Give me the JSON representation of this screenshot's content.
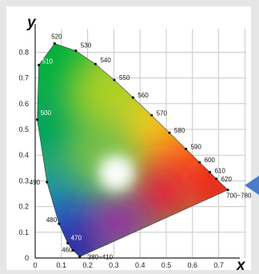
{
  "chart_data": {
    "type": "scatter",
    "title": "",
    "xlabel": "x",
    "ylabel": "y",
    "xlim": [
      0,
      0.8
    ],
    "ylim": [
      0,
      0.9
    ],
    "grid": true,
    "x_ticks": [
      "0",
      "0.1",
      "0.2",
      "0.3",
      "0.4",
      "0.5",
      "0.6",
      "0.7"
    ],
    "y_ticks": [
      "0",
      "0.1",
      "0.2",
      "0.3",
      "0.4",
      "0.5",
      "0.6",
      "0.7",
      "0.8"
    ],
    "spectral_locus": [
      {
        "label": "380~410",
        "x": 0.17,
        "y": 0.005
      },
      {
        "label": "460",
        "x": 0.144,
        "y": 0.03
      },
      {
        "label": "470",
        "x": 0.124,
        "y": 0.058
      },
      {
        "label": "480",
        "x": 0.091,
        "y": 0.133
      },
      {
        "label": "490",
        "x": 0.045,
        "y": 0.295
      },
      {
        "label": "500",
        "x": 0.008,
        "y": 0.538
      },
      {
        "label": "510",
        "x": 0.014,
        "y": 0.75
      },
      {
        "label": "520",
        "x": 0.074,
        "y": 0.834
      },
      {
        "label": "530",
        "x": 0.155,
        "y": 0.806
      },
      {
        "label": "540",
        "x": 0.23,
        "y": 0.754
      },
      {
        "label": "550",
        "x": 0.302,
        "y": 0.692
      },
      {
        "label": "560",
        "x": 0.373,
        "y": 0.624
      },
      {
        "label": "570",
        "x": 0.444,
        "y": 0.555
      },
      {
        "label": "580",
        "x": 0.512,
        "y": 0.487
      },
      {
        "label": "590",
        "x": 0.575,
        "y": 0.424
      },
      {
        "label": "600",
        "x": 0.627,
        "y": 0.372
      },
      {
        "label": "610",
        "x": 0.666,
        "y": 0.334
      },
      {
        "label": "620",
        "x": 0.691,
        "y": 0.308
      },
      {
        "label": "700~780",
        "x": 0.735,
        "y": 0.265
      }
    ]
  },
  "colors": {
    "frame_border_arrow": "#4a7cc8",
    "white_point": "#ffffff"
  }
}
